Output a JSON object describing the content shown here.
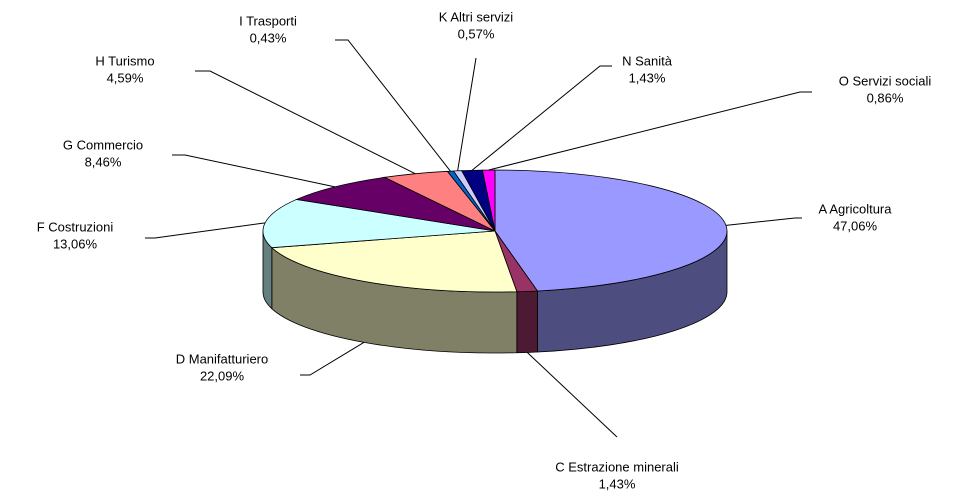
{
  "chart_data": {
    "type": "pie",
    "categories": [
      "A  Agricoltura",
      "C  Estrazione minerali",
      "D  Manifatturiero",
      "F  Costruzioni",
      "G  Commercio",
      "H  Turismo",
      "I  Trasporti",
      "K  Altri servizi",
      "N  Sanità",
      "O  Servizi sociali"
    ],
    "values": [
      47.06,
      1.43,
      22.09,
      13.06,
      8.46,
      4.59,
      0.43,
      0.57,
      1.43,
      0.86
    ],
    "value_labels": [
      "47,06%",
      "1,43%",
      "22,09%",
      "13,06%",
      "8,46%",
      "4,59%",
      "0,43%",
      "0,57%",
      "1,43%",
      "0,86%"
    ],
    "colors": [
      "#9999ff",
      "#993366",
      "#ffffcc",
      "#ccffff",
      "#660066",
      "#ff8080",
      "#0066cc",
      "#ccccff",
      "#000080",
      "#ff00ff"
    ]
  }
}
